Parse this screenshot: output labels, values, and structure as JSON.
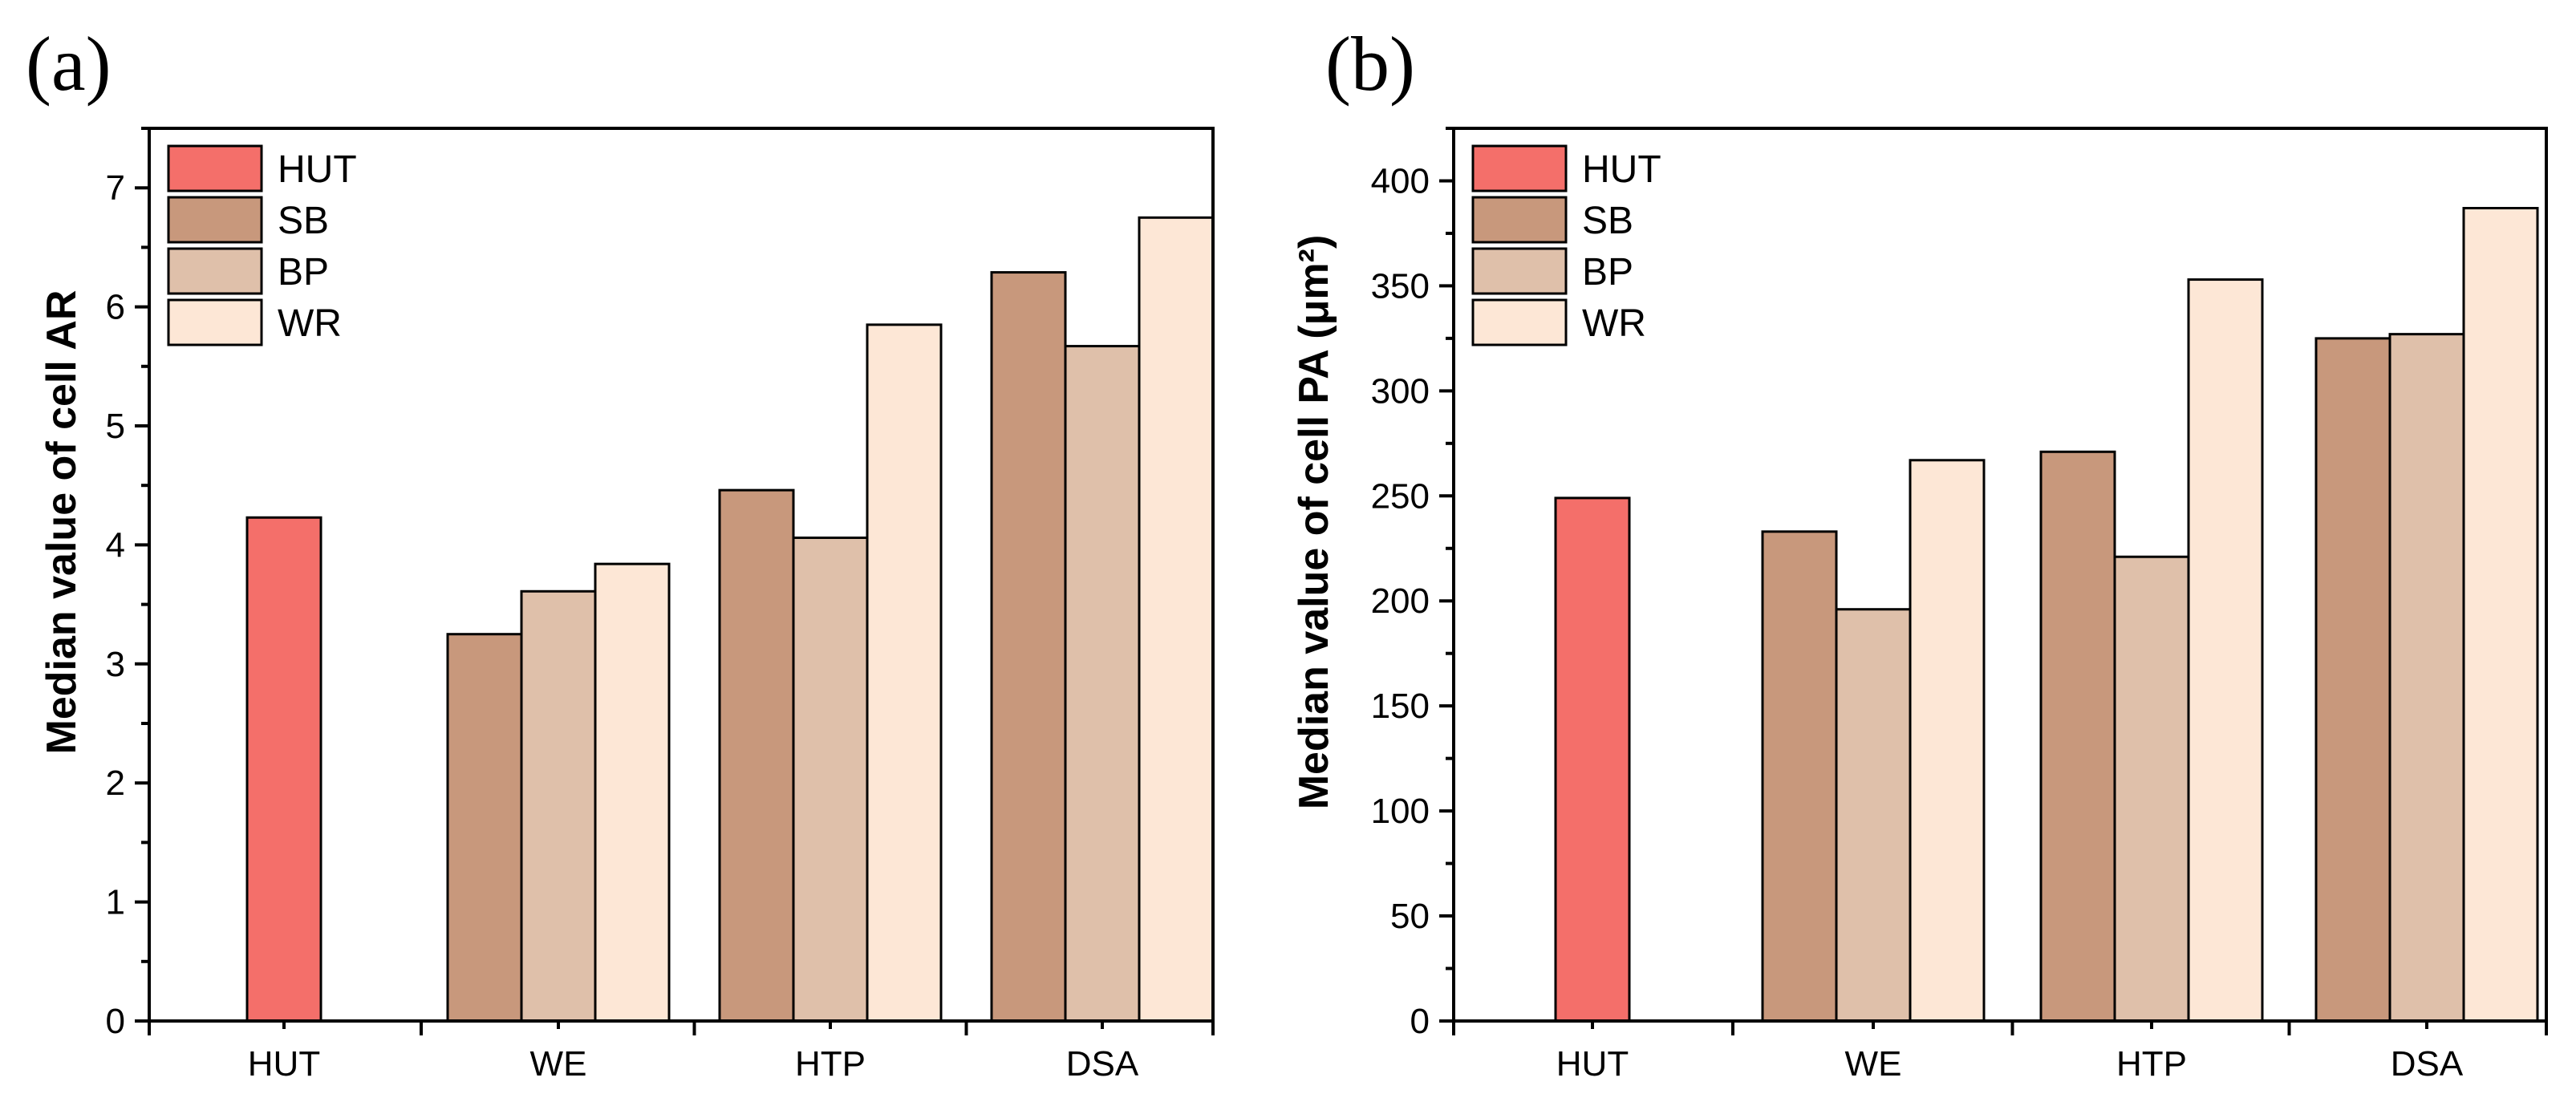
{
  "chart_data": [
    {
      "type": "bar",
      "panel_label": "(a)",
      "title": "",
      "xlabel": "",
      "ylabel": "Median value of cell AR",
      "categories": [
        "HUT",
        "WE",
        "HTP",
        "DSA"
      ],
      "ylim": [
        0,
        7.5
      ],
      "yticks": [
        0,
        1,
        2,
        3,
        4,
        5,
        6,
        7
      ],
      "ytick_labels": [
        "0",
        "1",
        "2",
        "3",
        "4",
        "5",
        "6",
        "7"
      ],
      "legend_position": "top-left",
      "series": [
        {
          "name": "HUT",
          "color": "#f46f6a",
          "values": [
            4.23,
            null,
            null,
            null
          ]
        },
        {
          "name": "SB",
          "color": "#c8987c",
          "values": [
            null,
            3.25,
            4.46,
            6.29
          ]
        },
        {
          "name": "BP",
          "color": "#dfc0aa",
          "values": [
            null,
            3.61,
            4.06,
            5.67
          ]
        },
        {
          "name": "WR",
          "color": "#fde7d6",
          "values": [
            null,
            3.84,
            5.85,
            6.75
          ]
        }
      ]
    },
    {
      "type": "bar",
      "panel_label": "(b)",
      "title": "",
      "xlabel": "",
      "ylabel": "Median value of cell PA (μm²)",
      "categories": [
        "HUT",
        "WE",
        "HTP",
        "DSA"
      ],
      "ylim": [
        0,
        425
      ],
      "yticks": [
        0,
        50,
        100,
        150,
        200,
        250,
        300,
        350,
        400
      ],
      "ytick_labels": [
        "0",
        "50",
        "100",
        "150",
        "200",
        "250",
        "300",
        "350",
        "400"
      ],
      "legend_position": "top-left",
      "series": [
        {
          "name": "HUT",
          "color": "#f46f6a",
          "values": [
            249,
            null,
            null,
            null
          ]
        },
        {
          "name": "SB",
          "color": "#c8987c",
          "values": [
            null,
            233,
            271,
            325
          ]
        },
        {
          "name": "BP",
          "color": "#dfc0aa",
          "values": [
            null,
            196,
            221,
            327
          ]
        },
        {
          "name": "WR",
          "color": "#fde7d6",
          "values": [
            null,
            267,
            353,
            387
          ]
        }
      ]
    }
  ]
}
